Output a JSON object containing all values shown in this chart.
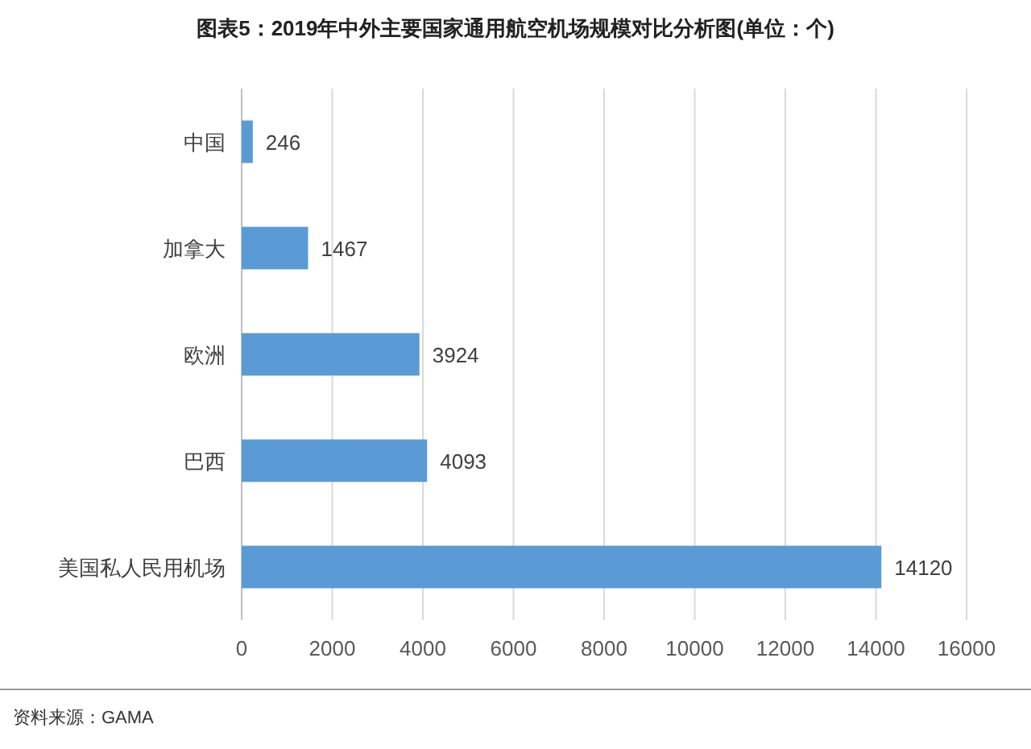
{
  "chart_data": {
    "type": "bar",
    "orientation": "horizontal",
    "title": "图表5：2019年中外主要国家通用航空机场规模对比分析图(单位：个)",
    "categories": [
      "中国",
      "加拿大",
      "欧洲",
      "巴西",
      "美国私人民用机场"
    ],
    "values": [
      246,
      1467,
      3924,
      4093,
      14120
    ],
    "color": "#5b9bd5",
    "xlim": [
      0,
      16000
    ],
    "xticks": [
      0,
      2000,
      4000,
      6000,
      8000,
      10000,
      12000,
      14000,
      16000
    ],
    "grid": "x",
    "data_labels": true,
    "annotations": [
      "资料来源：GAMA"
    ]
  }
}
